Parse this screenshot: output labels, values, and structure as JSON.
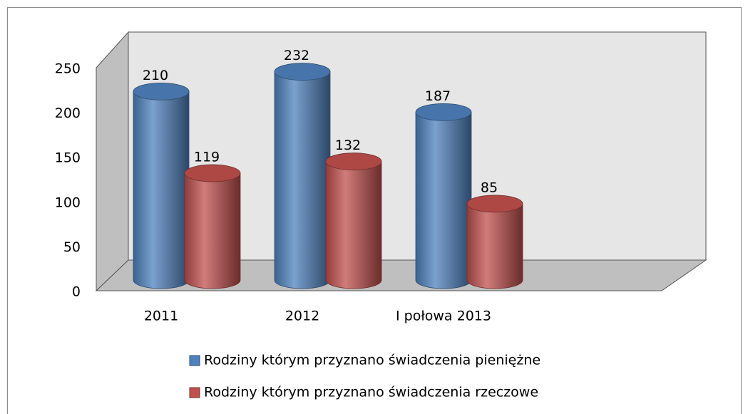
{
  "chart_data": {
    "type": "bar3d",
    "categories": [
      "2011",
      "2012",
      "I połowa 2013"
    ],
    "series": [
      {
        "name": "Rodziny którym przyznano świadczenia pieniężne",
        "color": "#4f81bd",
        "values": [
          210,
          232,
          187
        ]
      },
      {
        "name": "Rodziny którym przyznano świadczenia rzeczowe",
        "color": "#c0504d",
        "values": [
          119,
          132,
          85
        ]
      }
    ],
    "ylim": [
      0,
      250
    ],
    "yticks": [
      0,
      50,
      100,
      150,
      200,
      250
    ],
    "grid": false
  }
}
